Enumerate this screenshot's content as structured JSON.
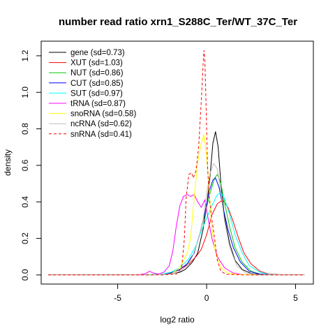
{
  "chart_data": {
    "type": "line",
    "title": "number read ratio xrn1_S288C_Ter/WT_37C_Ter",
    "xlabel": "log2 ratio",
    "ylabel": "density",
    "xlim": [
      -9.3,
      6.0
    ],
    "ylim": [
      -0.05,
      1.28
    ],
    "xticks": [
      -5,
      0,
      5
    ],
    "yticks": [
      0.0,
      0.2,
      0.4,
      0.6,
      0.8,
      1.0,
      1.2
    ],
    "grid": false,
    "legend_position": "top-left",
    "series": [
      {
        "name": "gene (sd=0.73)",
        "color": "#000000",
        "dash": "solid",
        "points": [
          [
            -8.9,
            0
          ],
          [
            -3.5,
            0
          ],
          [
            -2.5,
            0.002
          ],
          [
            -2.0,
            0.006
          ],
          [
            -1.5,
            0.015
          ],
          [
            -1.2,
            0.03
          ],
          [
            -0.8,
            0.07
          ],
          [
            -0.5,
            0.12
          ],
          [
            -0.2,
            0.25
          ],
          [
            0.0,
            0.38
          ],
          [
            0.2,
            0.55
          ],
          [
            0.35,
            0.72
          ],
          [
            0.5,
            0.785
          ],
          [
            0.65,
            0.7
          ],
          [
            0.8,
            0.5
          ],
          [
            1.0,
            0.32
          ],
          [
            1.3,
            0.17
          ],
          [
            1.6,
            0.08
          ],
          [
            2.0,
            0.03
          ],
          [
            2.5,
            0.008
          ],
          [
            3.0,
            0.002
          ],
          [
            4.0,
            0
          ],
          [
            5.5,
            0
          ]
        ]
      },
      {
        "name": "XUT (sd=1.03)",
        "color": "#ff0000",
        "dash": "solid",
        "points": [
          [
            -8.9,
            0
          ],
          [
            -3.5,
            0
          ],
          [
            -2.5,
            0.003
          ],
          [
            -2.0,
            0.01
          ],
          [
            -1.5,
            0.03
          ],
          [
            -1.0,
            0.06
          ],
          [
            -0.6,
            0.1
          ],
          [
            -0.3,
            0.14
          ],
          [
            0.0,
            0.22
          ],
          [
            0.3,
            0.33
          ],
          [
            0.6,
            0.39
          ],
          [
            0.9,
            0.41
          ],
          [
            1.2,
            0.37
          ],
          [
            1.5,
            0.29
          ],
          [
            1.8,
            0.2
          ],
          [
            2.1,
            0.12
          ],
          [
            2.5,
            0.06
          ],
          [
            3.0,
            0.02
          ],
          [
            3.5,
            0.005
          ],
          [
            4.5,
            0
          ],
          [
            5.5,
            0
          ]
        ]
      },
      {
        "name": "NUT (sd=0.86)",
        "color": "#00cc00",
        "dash": "solid",
        "points": [
          [
            -8.9,
            0
          ],
          [
            -3.5,
            0
          ],
          [
            -2.5,
            0.004
          ],
          [
            -2.0,
            0.012
          ],
          [
            -1.5,
            0.03
          ],
          [
            -1.1,
            0.06
          ],
          [
            -0.7,
            0.12
          ],
          [
            -0.4,
            0.22
          ],
          [
            -0.1,
            0.33
          ],
          [
            0.2,
            0.45
          ],
          [
            0.45,
            0.53
          ],
          [
            0.6,
            0.55
          ],
          [
            0.8,
            0.5
          ],
          [
            1.0,
            0.4
          ],
          [
            1.3,
            0.26
          ],
          [
            1.6,
            0.15
          ],
          [
            2.0,
            0.07
          ],
          [
            2.5,
            0.02
          ],
          [
            3.0,
            0.005
          ],
          [
            4.0,
            0
          ],
          [
            5.5,
            0
          ]
        ]
      },
      {
        "name": "CUT (sd=0.85)",
        "color": "#0000ff",
        "dash": "solid",
        "points": [
          [
            -8.9,
            0
          ],
          [
            -3.5,
            0
          ],
          [
            -2.5,
            0.004
          ],
          [
            -2.0,
            0.012
          ],
          [
            -1.5,
            0.03
          ],
          [
            -1.1,
            0.06
          ],
          [
            -0.7,
            0.12
          ],
          [
            -0.4,
            0.22
          ],
          [
            -0.1,
            0.34
          ],
          [
            0.15,
            0.46
          ],
          [
            0.35,
            0.52
          ],
          [
            0.5,
            0.53
          ],
          [
            0.7,
            0.48
          ],
          [
            0.9,
            0.38
          ],
          [
            1.2,
            0.25
          ],
          [
            1.5,
            0.15
          ],
          [
            1.9,
            0.07
          ],
          [
            2.4,
            0.02
          ],
          [
            3.0,
            0.004
          ],
          [
            4.0,
            0
          ],
          [
            5.5,
            0
          ]
        ]
      },
      {
        "name": "SUT (sd=0.97)",
        "color": "#00ffff",
        "dash": "solid",
        "points": [
          [
            -8.9,
            0
          ],
          [
            -3.5,
            0
          ],
          [
            -2.5,
            0.005
          ],
          [
            -2.0,
            0.015
          ],
          [
            -1.5,
            0.04
          ],
          [
            -1.0,
            0.09
          ],
          [
            -0.6,
            0.16
          ],
          [
            -0.3,
            0.24
          ],
          [
            0.0,
            0.31
          ],
          [
            0.3,
            0.38
          ],
          [
            0.6,
            0.44
          ],
          [
            0.8,
            0.45
          ],
          [
            1.0,
            0.42
          ],
          [
            1.3,
            0.33
          ],
          [
            1.6,
            0.22
          ],
          [
            2.0,
            0.12
          ],
          [
            2.4,
            0.05
          ],
          [
            3.0,
            0.015
          ],
          [
            3.5,
            0.003
          ],
          [
            4.5,
            0
          ],
          [
            5.5,
            0
          ]
        ]
      },
      {
        "name": "tRNA (sd=0.87)",
        "color": "#ff00ff",
        "dash": "solid",
        "points": [
          [
            -8.9,
            0
          ],
          [
            -4.0,
            0
          ],
          [
            -3.5,
            0.005
          ],
          [
            -3.2,
            0.02
          ],
          [
            -3.0,
            0.01
          ],
          [
            -2.7,
            0.005
          ],
          [
            -2.4,
            0.015
          ],
          [
            -2.1,
            0.05
          ],
          [
            -1.9,
            0.13
          ],
          [
            -1.7,
            0.27
          ],
          [
            -1.5,
            0.38
          ],
          [
            -1.3,
            0.43
          ],
          [
            -1.1,
            0.44
          ],
          [
            -0.9,
            0.43
          ],
          [
            -0.7,
            0.44
          ],
          [
            -0.5,
            0.4
          ],
          [
            -0.3,
            0.37
          ],
          [
            -0.1,
            0.41
          ],
          [
            0.1,
            0.3
          ],
          [
            0.3,
            0.2
          ],
          [
            0.6,
            0.1
          ],
          [
            1.0,
            0.04
          ],
          [
            1.5,
            0.01
          ],
          [
            2.0,
            0.002
          ],
          [
            3.0,
            0
          ],
          [
            5.5,
            0
          ]
        ]
      },
      {
        "name": "snoRNA (sd=0.58)",
        "color": "#ffff00",
        "dash": "solid",
        "points": [
          [
            -8.9,
            0
          ],
          [
            -3.0,
            0
          ],
          [
            -2.0,
            0.005
          ],
          [
            -1.5,
            0.04
          ],
          [
            -1.3,
            0.08
          ],
          [
            -1.1,
            0.12
          ],
          [
            -0.9,
            0.2
          ],
          [
            -0.7,
            0.42
          ],
          [
            -0.5,
            0.62
          ],
          [
            -0.3,
            0.72
          ],
          [
            -0.15,
            0.77
          ],
          [
            0.0,
            0.65
          ],
          [
            0.15,
            0.45
          ],
          [
            0.3,
            0.25
          ],
          [
            0.5,
            0.12
          ],
          [
            0.8,
            0.04
          ],
          [
            1.2,
            0.01
          ],
          [
            1.8,
            0.002
          ],
          [
            3.0,
            0
          ],
          [
            5.5,
            0
          ]
        ]
      },
      {
        "name": "ncRNA (sd=0.62)",
        "color": "#bebebe",
        "dash": "solid",
        "points": [
          [
            -8.9,
            0
          ],
          [
            -3.0,
            0
          ],
          [
            -2.0,
            0.005
          ],
          [
            -1.5,
            0.02
          ],
          [
            -1.1,
            0.05
          ],
          [
            -0.8,
            0.1
          ],
          [
            -0.5,
            0.18
          ],
          [
            -0.2,
            0.3
          ],
          [
            0.0,
            0.45
          ],
          [
            0.2,
            0.56
          ],
          [
            0.4,
            0.61
          ],
          [
            0.6,
            0.58
          ],
          [
            0.8,
            0.45
          ],
          [
            1.0,
            0.3
          ],
          [
            1.3,
            0.15
          ],
          [
            1.7,
            0.05
          ],
          [
            2.2,
            0.01
          ],
          [
            3.0,
            0
          ],
          [
            5.5,
            0
          ]
        ]
      },
      {
        "name": "snRNA (sd=0.41)",
        "color": "#ff0000",
        "dash": "dashed",
        "points": [
          [
            -8.9,
            0
          ],
          [
            -2.5,
            0
          ],
          [
            -1.7,
            0.005
          ],
          [
            -1.4,
            0.04
          ],
          [
            -1.25,
            0.2
          ],
          [
            -1.15,
            0.42
          ],
          [
            -1.0,
            0.55
          ],
          [
            -0.85,
            0.56
          ],
          [
            -0.75,
            0.53
          ],
          [
            -0.6,
            0.57
          ],
          [
            -0.45,
            0.7
          ],
          [
            -0.3,
            0.95
          ],
          [
            -0.2,
            1.15
          ],
          [
            -0.15,
            1.23
          ],
          [
            -0.1,
            1.18
          ],
          [
            -0.02,
            0.9
          ],
          [
            0.05,
            0.6
          ],
          [
            0.15,
            0.42
          ],
          [
            0.3,
            0.3
          ],
          [
            0.45,
            0.2
          ],
          [
            0.6,
            0.08
          ],
          [
            0.8,
            0.02
          ],
          [
            1.1,
            0.003
          ],
          [
            2.0,
            0
          ],
          [
            5.5,
            0
          ]
        ]
      }
    ]
  }
}
